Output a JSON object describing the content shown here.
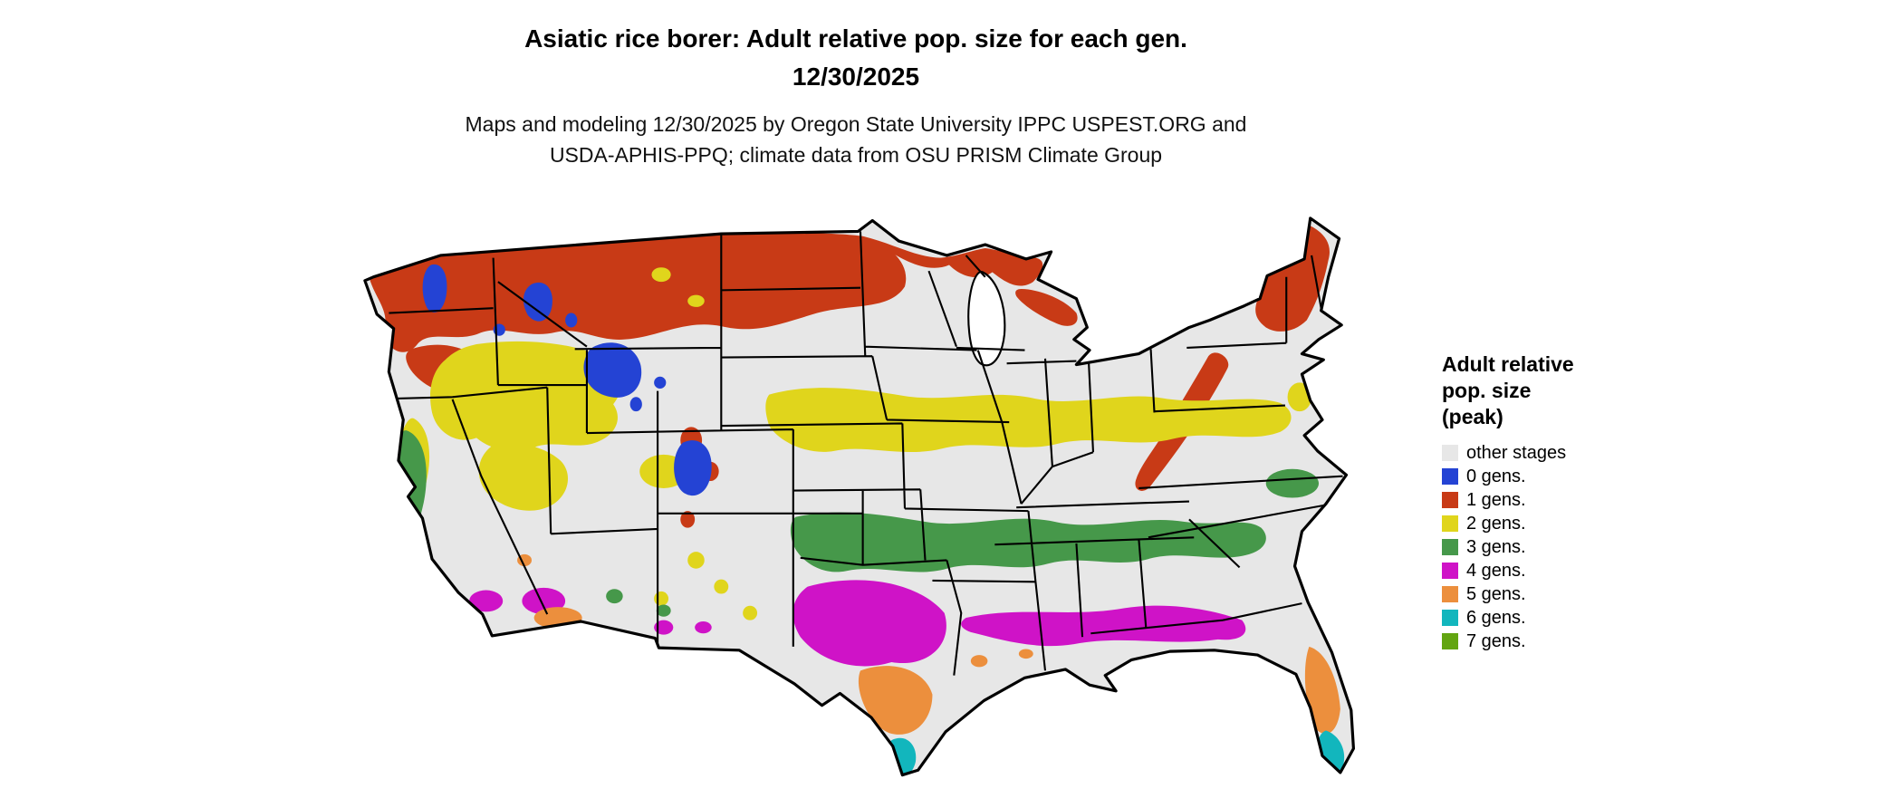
{
  "header": {
    "title_line1": "Asiatic rice borer: Adult relative pop. size for each gen.",
    "title_line2": "12/30/2025",
    "subtitle_line1": "Maps and modeling 12/30/2025 by Oregon State University IPPC USPEST.ORG and",
    "subtitle_line2": "USDA-APHIS-PPQ; climate data from OSU PRISM Climate Group"
  },
  "legend": {
    "title_line1": "Adult relative",
    "title_line2": "pop. size",
    "title_line3": "(peak)",
    "items": [
      {
        "key": "other",
        "label": "other stages",
        "color": "#e7e7e7"
      },
      {
        "key": "0",
        "label": "0 gens.",
        "color": "#2443d4"
      },
      {
        "key": "1",
        "label": "1 gens.",
        "color": "#c83a16"
      },
      {
        "key": "2",
        "label": "2 gens.",
        "color": "#e0d51c"
      },
      {
        "key": "3",
        "label": "3 gens.",
        "color": "#46984a"
      },
      {
        "key": "4",
        "label": "4 gens.",
        "color": "#cf13c7"
      },
      {
        "key": "5",
        "label": "5 gens.",
        "color": "#ec8f3d"
      },
      {
        "key": "6",
        "label": "6 gens.",
        "color": "#12b6bd"
      },
      {
        "key": "7",
        "label": "7 gens.",
        "color": "#63a511"
      }
    ]
  },
  "map": {
    "region": "Continental United States",
    "land_color": "#e7e7e7",
    "water_color": "#ffffff",
    "border_color": "#000000"
  }
}
